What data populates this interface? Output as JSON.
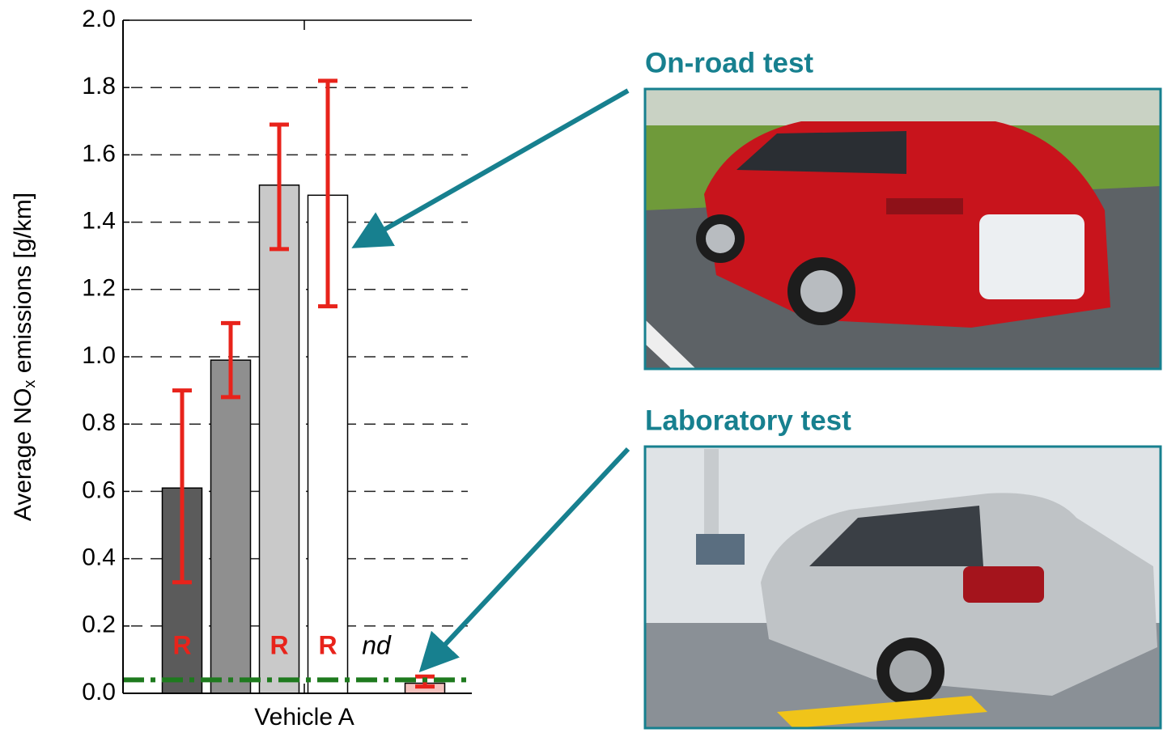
{
  "chart_data": {
    "type": "bar",
    "ylabel": [
      "Average NO",
      "x",
      " emissions [g/km]"
    ],
    "xlabel": "Vehicle A",
    "categories": [
      null,
      null,
      null,
      null,
      null,
      null
    ],
    "values": [
      0.61,
      0.99,
      1.51,
      1.48,
      null,
      0.03
    ],
    "colors": [
      "#5b5b5b",
      "#8f8f8f",
      "#c9c9c9",
      "#ffffff",
      null,
      "#f4c2be"
    ],
    "error_low": [
      0.33,
      0.88,
      1.32,
      1.15,
      null,
      0.02
    ],
    "error_high": [
      0.9,
      1.1,
      1.69,
      1.82,
      null,
      0.05
    ],
    "error_color": "#e8231b",
    "bar_labels": [
      "R",
      null,
      "R",
      "R",
      "nd",
      null
    ],
    "limit_line": 0.04,
    "limit_color": "#1e7a1e",
    "ylim": [
      0,
      2
    ],
    "yticks": [
      {
        "value": 0,
        "label": "0.0"
      },
      0.2,
      0.4,
      0.6,
      0.8,
      {
        "value": 1,
        "label": "1.0"
      },
      1.2,
      1.4,
      1.6,
      1.8,
      {
        "value": 2,
        "label": "2.0"
      }
    ],
    "grid": true
  },
  "panels": [
    {
      "title": "On-road test"
    },
    {
      "title": "Laboratory test"
    }
  ]
}
